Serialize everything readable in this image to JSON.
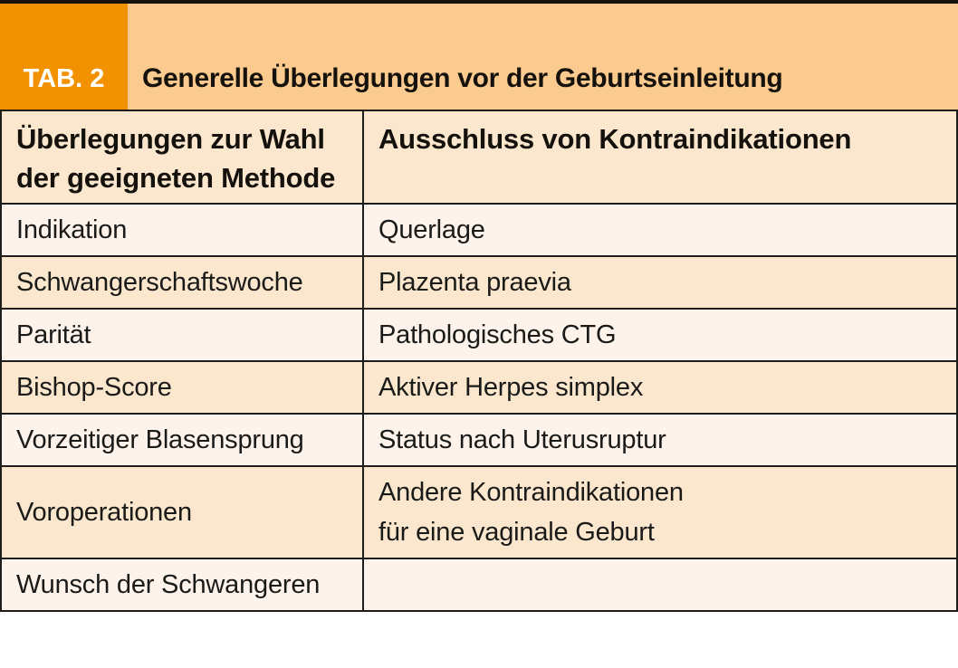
{
  "colors": {
    "accent_orange": "#F39200",
    "caption_band": "#FBCA8E",
    "row_peach": "#FBE7CE",
    "row_cream": "#FDF3EB",
    "border": "#1d1d1b",
    "top_rule": "#15110c"
  },
  "caption": {
    "tab_label": "TAB. 2",
    "title": "Generelle Überlegungen vor der Geburtseinleitung"
  },
  "table": {
    "headers": [
      "Überlegungen zur Wahl der geeigneten Methode",
      "Ausschluss von Kontraindikationen"
    ],
    "rows": [
      {
        "method": "Indikation",
        "contra": "Querlage"
      },
      {
        "method": "Schwangerschaftswoche",
        "contra": "Plazenta praevia"
      },
      {
        "method": "Parität",
        "contra": "Pathologisches CTG"
      },
      {
        "method": "Bishop-Score",
        "contra": "Aktiver Herpes simplex"
      },
      {
        "method": "Vorzeitiger Blasensprung",
        "contra": "Status nach Uterusruptur"
      },
      {
        "method": "Voroperationen",
        "contra": "Andere Kontraindikationen\nfür eine vaginale Geburt"
      },
      {
        "method": "Wunsch der Schwangeren",
        "contra": ""
      }
    ]
  }
}
